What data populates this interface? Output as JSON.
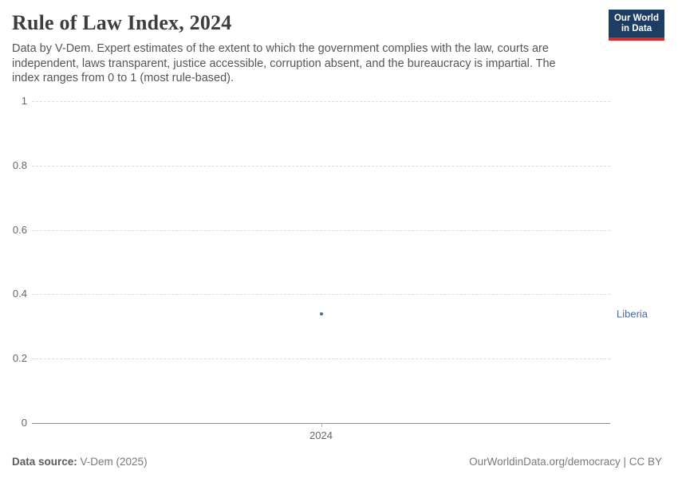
{
  "header": {
    "title": "Rule of Law Index, 2024",
    "subtitle": "Data by V-Dem. Expert estimates of the extent to which the government complies with the law, courts are independent, laws transparent, justice accessible, corruption absent, and the bureaucracy is impartial. The index ranges from 0 to 1 (most rule-based).",
    "logo": {
      "line1": "Our World",
      "line2": "in Data",
      "bg_color": "#1d3d63",
      "accent_color": "#dc2a26"
    }
  },
  "chart_data": {
    "type": "scatter",
    "title": "Rule of Law Index, 2024",
    "xlabel": "",
    "ylabel": "",
    "ylim": [
      0,
      1
    ],
    "y_ticks": [
      0,
      0.2,
      0.4,
      0.6,
      0.8,
      1
    ],
    "y_tick_labels": [
      "0",
      "0.2",
      "0.4",
      "0.6",
      "0.8",
      "1"
    ],
    "x_tick_labels": [
      "2024"
    ],
    "grid": "horizontal-dashed",
    "legend_position": "entity-label-right",
    "series": [
      {
        "name": "Liberia",
        "color": "#4c6a9c",
        "values": [
          {
            "x": 2024,
            "y": 0.34
          }
        ]
      }
    ]
  },
  "footer": {
    "source_label": "Data source:",
    "source_value": " V-Dem (2025)",
    "credit": "OurWorldinData.org/democracy | CC BY"
  }
}
